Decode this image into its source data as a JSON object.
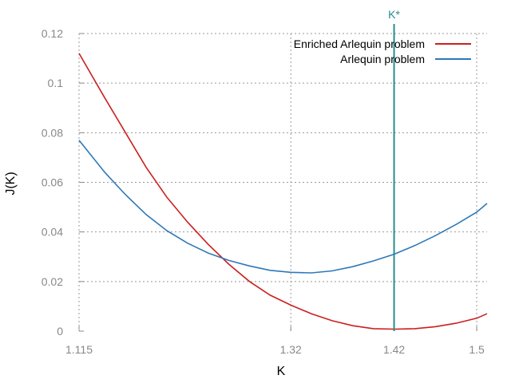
{
  "chart_data": {
    "type": "line",
    "title": "",
    "xlabel": "K",
    "ylabel": "J(K)",
    "xlim": [
      1.115,
      1.51
    ],
    "ylim": [
      0,
      0.12
    ],
    "xticks": [
      1.115,
      1.32,
      1.42,
      1.5
    ],
    "xtick_labels": [
      "1.115",
      "1.32",
      "1.42",
      "1.5"
    ],
    "yticks": [
      0,
      0.02,
      0.04,
      0.06,
      0.08,
      0.1,
      0.12
    ],
    "ytick_labels": [
      "0",
      "0.02",
      "0.04",
      "0.06",
      "0.08",
      "0.1",
      "0.12"
    ],
    "grid": true,
    "legend_position": "top-right",
    "series": [
      {
        "name": "Enriched Arlequin problem",
        "color": "#cc1f1f",
        "x": [
          1.115,
          1.14,
          1.16,
          1.18,
          1.2,
          1.22,
          1.24,
          1.26,
          1.28,
          1.3,
          1.32,
          1.34,
          1.36,
          1.38,
          1.4,
          1.42,
          1.44,
          1.46,
          1.48,
          1.5,
          1.51
        ],
        "y": [
          0.112,
          0.094,
          0.08,
          0.066,
          0.054,
          0.044,
          0.035,
          0.027,
          0.02,
          0.0145,
          0.0105,
          0.007,
          0.0042,
          0.0022,
          0.001,
          0.0008,
          0.001,
          0.0018,
          0.0032,
          0.0052,
          0.007
        ]
      },
      {
        "name": "Arlequin problem",
        "color": "#2e78b8",
        "x": [
          1.115,
          1.14,
          1.16,
          1.18,
          1.2,
          1.22,
          1.24,
          1.26,
          1.28,
          1.3,
          1.32,
          1.34,
          1.36,
          1.38,
          1.4,
          1.42,
          1.44,
          1.46,
          1.48,
          1.5,
          1.51
        ],
        "y": [
          0.077,
          0.064,
          0.055,
          0.047,
          0.0405,
          0.0355,
          0.0315,
          0.0285,
          0.0263,
          0.0245,
          0.0237,
          0.0235,
          0.0243,
          0.026,
          0.0283,
          0.031,
          0.0345,
          0.0385,
          0.043,
          0.048,
          0.0515
        ]
      }
    ],
    "annotations": [
      {
        "label": "K*",
        "x": 1.42,
        "color": "#2a8c8c"
      }
    ]
  }
}
